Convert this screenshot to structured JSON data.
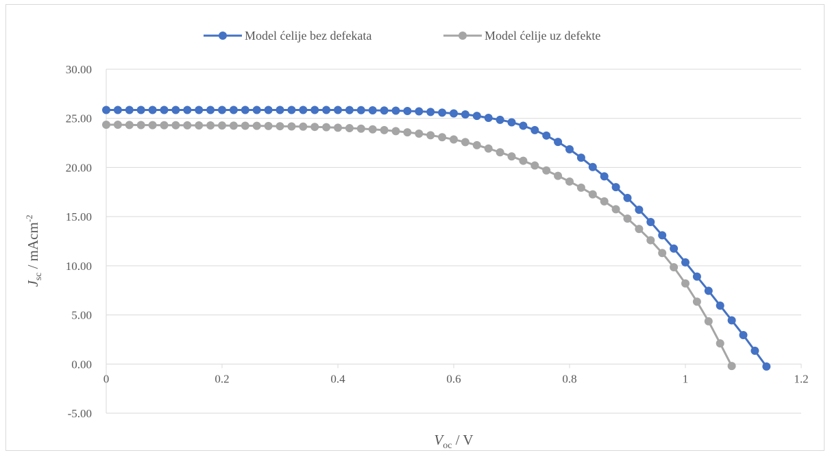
{
  "chart_data": {
    "type": "scatter",
    "title": "",
    "xlabel": {
      "symbol": "V",
      "subscript": "oc",
      "unit": " / V"
    },
    "ylabel": {
      "symbol": "J",
      "subscript": "sc",
      "unit": " / mAcm",
      "superscript": "-2"
    },
    "xlim": [
      0,
      1.2
    ],
    "ylim": [
      -5,
      30
    ],
    "x_ticks": [
      0,
      0.2,
      0.4,
      0.6,
      0.8,
      1,
      1.2
    ],
    "x_tick_labels": [
      "0",
      "0.2",
      "0.4",
      "0.6",
      "0.8",
      "1",
      "1.2"
    ],
    "y_ticks": [
      -5,
      0,
      5,
      10,
      15,
      20,
      25,
      30
    ],
    "y_tick_labels": [
      "-5.00",
      "0.00",
      "5.00",
      "10.00",
      "15.00",
      "20.00",
      "25.00",
      "30.00"
    ],
    "grid": "horizontal",
    "legend_position": "top",
    "series": [
      {
        "name": "Model ćelije bez defekata",
        "color": "#4472c4",
        "x": [
          0,
          0.02,
          0.04,
          0.06,
          0.08,
          0.1,
          0.12,
          0.14,
          0.16,
          0.18,
          0.2,
          0.22,
          0.24,
          0.26,
          0.28,
          0.3,
          0.32,
          0.34,
          0.36,
          0.38,
          0.4,
          0.42,
          0.44,
          0.46,
          0.48,
          0.5,
          0.52,
          0.54,
          0.56,
          0.58,
          0.6,
          0.62,
          0.64,
          0.66,
          0.68,
          0.7,
          0.72,
          0.74,
          0.76,
          0.78,
          0.8,
          0.82,
          0.84,
          0.86,
          0.88,
          0.9,
          0.92,
          0.94,
          0.96,
          0.98,
          1.0,
          1.02,
          1.04,
          1.06,
          1.08,
          1.1,
          1.12,
          1.14
        ],
        "y": [
          25.85,
          25.85,
          25.85,
          25.85,
          25.85,
          25.85,
          25.85,
          25.85,
          25.85,
          25.85,
          25.85,
          25.85,
          25.85,
          25.85,
          25.85,
          25.85,
          25.85,
          25.85,
          25.85,
          25.85,
          25.85,
          25.84,
          25.83,
          25.82,
          25.8,
          25.78,
          25.75,
          25.71,
          25.65,
          25.58,
          25.5,
          25.4,
          25.25,
          25.05,
          24.85,
          24.6,
          24.25,
          23.8,
          23.25,
          22.6,
          21.85,
          21.0,
          20.05,
          19.1,
          18.0,
          16.9,
          15.7,
          14.45,
          13.1,
          11.75,
          10.35,
          8.9,
          7.45,
          5.95,
          4.45,
          2.95,
          1.35,
          -0.25
        ]
      },
      {
        "name": "Model ćelije uz defekte",
        "color": "#a5a5a5",
        "x": [
          0,
          0.02,
          0.04,
          0.06,
          0.08,
          0.1,
          0.12,
          0.14,
          0.16,
          0.18,
          0.2,
          0.22,
          0.24,
          0.26,
          0.28,
          0.3,
          0.32,
          0.34,
          0.36,
          0.38,
          0.4,
          0.42,
          0.44,
          0.46,
          0.48,
          0.5,
          0.52,
          0.54,
          0.56,
          0.58,
          0.6,
          0.62,
          0.64,
          0.66,
          0.68,
          0.7,
          0.72,
          0.74,
          0.76,
          0.78,
          0.8,
          0.82,
          0.84,
          0.86,
          0.88,
          0.9,
          0.92,
          0.94,
          0.96,
          0.98,
          1.0,
          1.02,
          1.04,
          1.06,
          1.08
        ],
        "y": [
          24.35,
          24.35,
          24.33,
          24.32,
          24.31,
          24.3,
          24.3,
          24.29,
          24.28,
          24.28,
          24.27,
          24.26,
          24.25,
          24.24,
          24.22,
          24.2,
          24.18,
          24.16,
          24.13,
          24.1,
          24.05,
          24.0,
          23.95,
          23.88,
          23.8,
          23.7,
          23.58,
          23.45,
          23.28,
          23.08,
          22.85,
          22.58,
          22.27,
          21.93,
          21.55,
          21.13,
          20.68,
          20.2,
          19.7,
          19.15,
          18.57,
          17.95,
          17.27,
          16.55,
          15.75,
          14.8,
          13.75,
          12.6,
          11.3,
          9.85,
          8.2,
          6.35,
          4.35,
          2.1,
          -0.2
        ]
      }
    ]
  }
}
